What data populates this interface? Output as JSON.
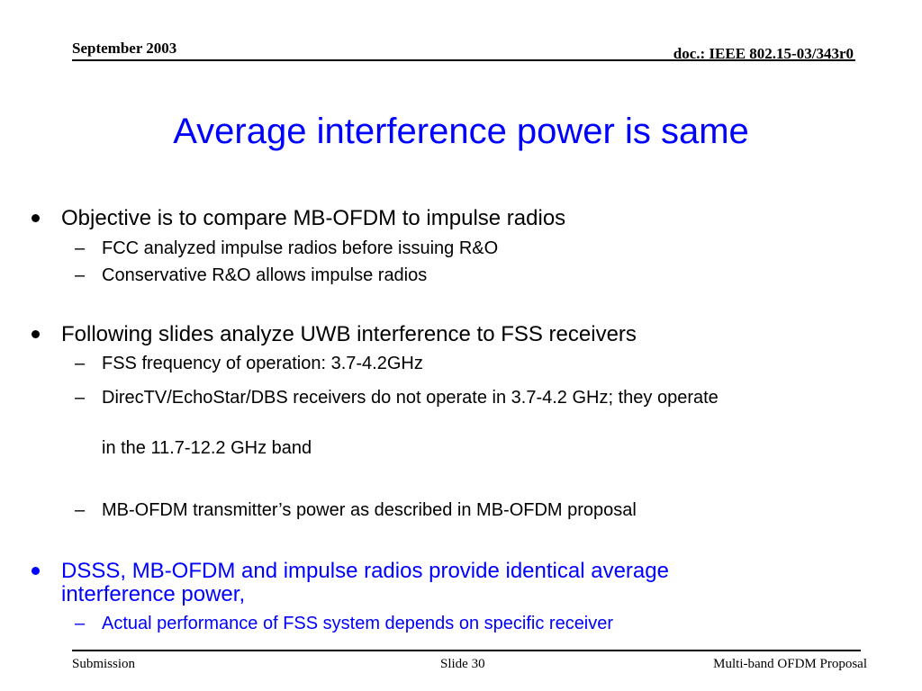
{
  "header": {
    "date": "September 2003",
    "doc_id": "doc.: IEEE 802.15-03/343r0"
  },
  "title": "Average interference power is same",
  "bullets": [
    {
      "text": "Objective is to compare MB-OFDM to impulse radios",
      "sub": [
        "FCC analyzed impulse radios before issuing R&O",
        "Conservative R&O allows impulse radios"
      ]
    },
    {
      "text": "Following slides analyze UWB interference to FSS receivers",
      "sub": [
        "FSS frequency of operation: 3.7-4.2GHz",
        "DirecTV/EchoStar/DBS receivers do not operate in 3.7-4.2 GHz; they operate",
        "in the 11.7-12.2 GHz band",
        "MB-OFDM transmitter’s power as described in MB-OFDM proposal"
      ]
    },
    {
      "text_line1": "DSSS, MB-OFDM and impulse radios provide identical average",
      "text_line2": "interference power,",
      "sub": [
        "Actual performance of FSS system depends on specific receiver"
      ]
    }
  ],
  "dash_glyph": "–",
  "footer": {
    "left": "Submission",
    "center": "Slide 30",
    "right": "Multi-band OFDM Proposal"
  },
  "colors": {
    "title": "#0000ff",
    "highlight_bullet": "#0000ff",
    "text": "#000000"
  }
}
